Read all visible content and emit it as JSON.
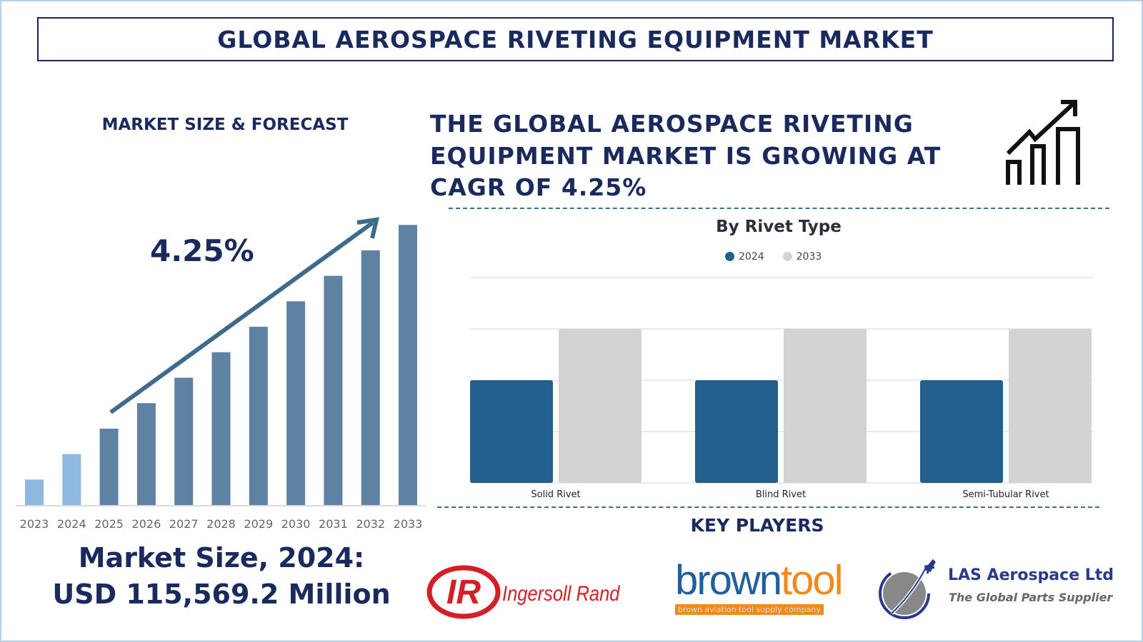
{
  "header": {
    "title": "GLOBAL AEROSPACE RIVETING EQUIPMENT MARKET"
  },
  "left": {
    "section_title": "MARKET SIZE & FORECAST",
    "cagr_label": "4.25%",
    "market_size_line1": "Market Size, 2024:",
    "market_size_line2": "USD 115,569.2 Million"
  },
  "right": {
    "headline_lines": [
      "THE GLOBAL AEROSPACE RIVETING",
      "EQUIPMENT MARKET IS GROWING AT",
      "CAGR OF 4.25%"
    ],
    "growth_icon": "bar-chart-growth-arrow-icon",
    "key_players_title": "KEY PLAYERS",
    "key_players": [
      {
        "name": "Ingersoll Rand",
        "logo_text": "IR"
      },
      {
        "name": "browntool",
        "tagline": "brown aviation tool supply company"
      },
      {
        "name": "LAS Aerospace Ltd",
        "tagline": "The Global Parts Supplier"
      }
    ]
  },
  "chart_data": [
    {
      "type": "bar",
      "title": "MARKET SIZE & FORECAST",
      "categories": [
        "2023",
        "2024",
        "2025",
        "2026",
        "2027",
        "2028",
        "2029",
        "2030",
        "2031",
        "2032",
        "2033"
      ],
      "values": [
        1,
        2,
        3,
        4,
        5,
        6,
        7,
        8,
        9,
        10,
        11
      ],
      "value_note": "relative bar heights, no y-axis printed",
      "colors": [
        "#8fb8de",
        "#8fb8de",
        "#5f82a3",
        "#5f82a3",
        "#5f82a3",
        "#5f82a3",
        "#5f82a3",
        "#5f82a3",
        "#5f82a3",
        "#5f82a3",
        "#5f82a3"
      ],
      "annotation": "4.25%",
      "trend_arrow_color": "#3e6a8c",
      "grid": false
    },
    {
      "type": "bar",
      "title": "By Rivet Type",
      "categories": [
        "Solid Rivet",
        "Blind Rivet",
        "Semi-Tubular Rivet"
      ],
      "series": [
        {
          "name": "2024",
          "values": [
            2,
            2,
            2
          ],
          "color": "#24608e"
        },
        {
          "name": "2033",
          "values": [
            3,
            3,
            3
          ],
          "color": "#d3d3d3"
        }
      ],
      "ylim": [
        0,
        4
      ],
      "grid": true,
      "legend": "top"
    }
  ]
}
